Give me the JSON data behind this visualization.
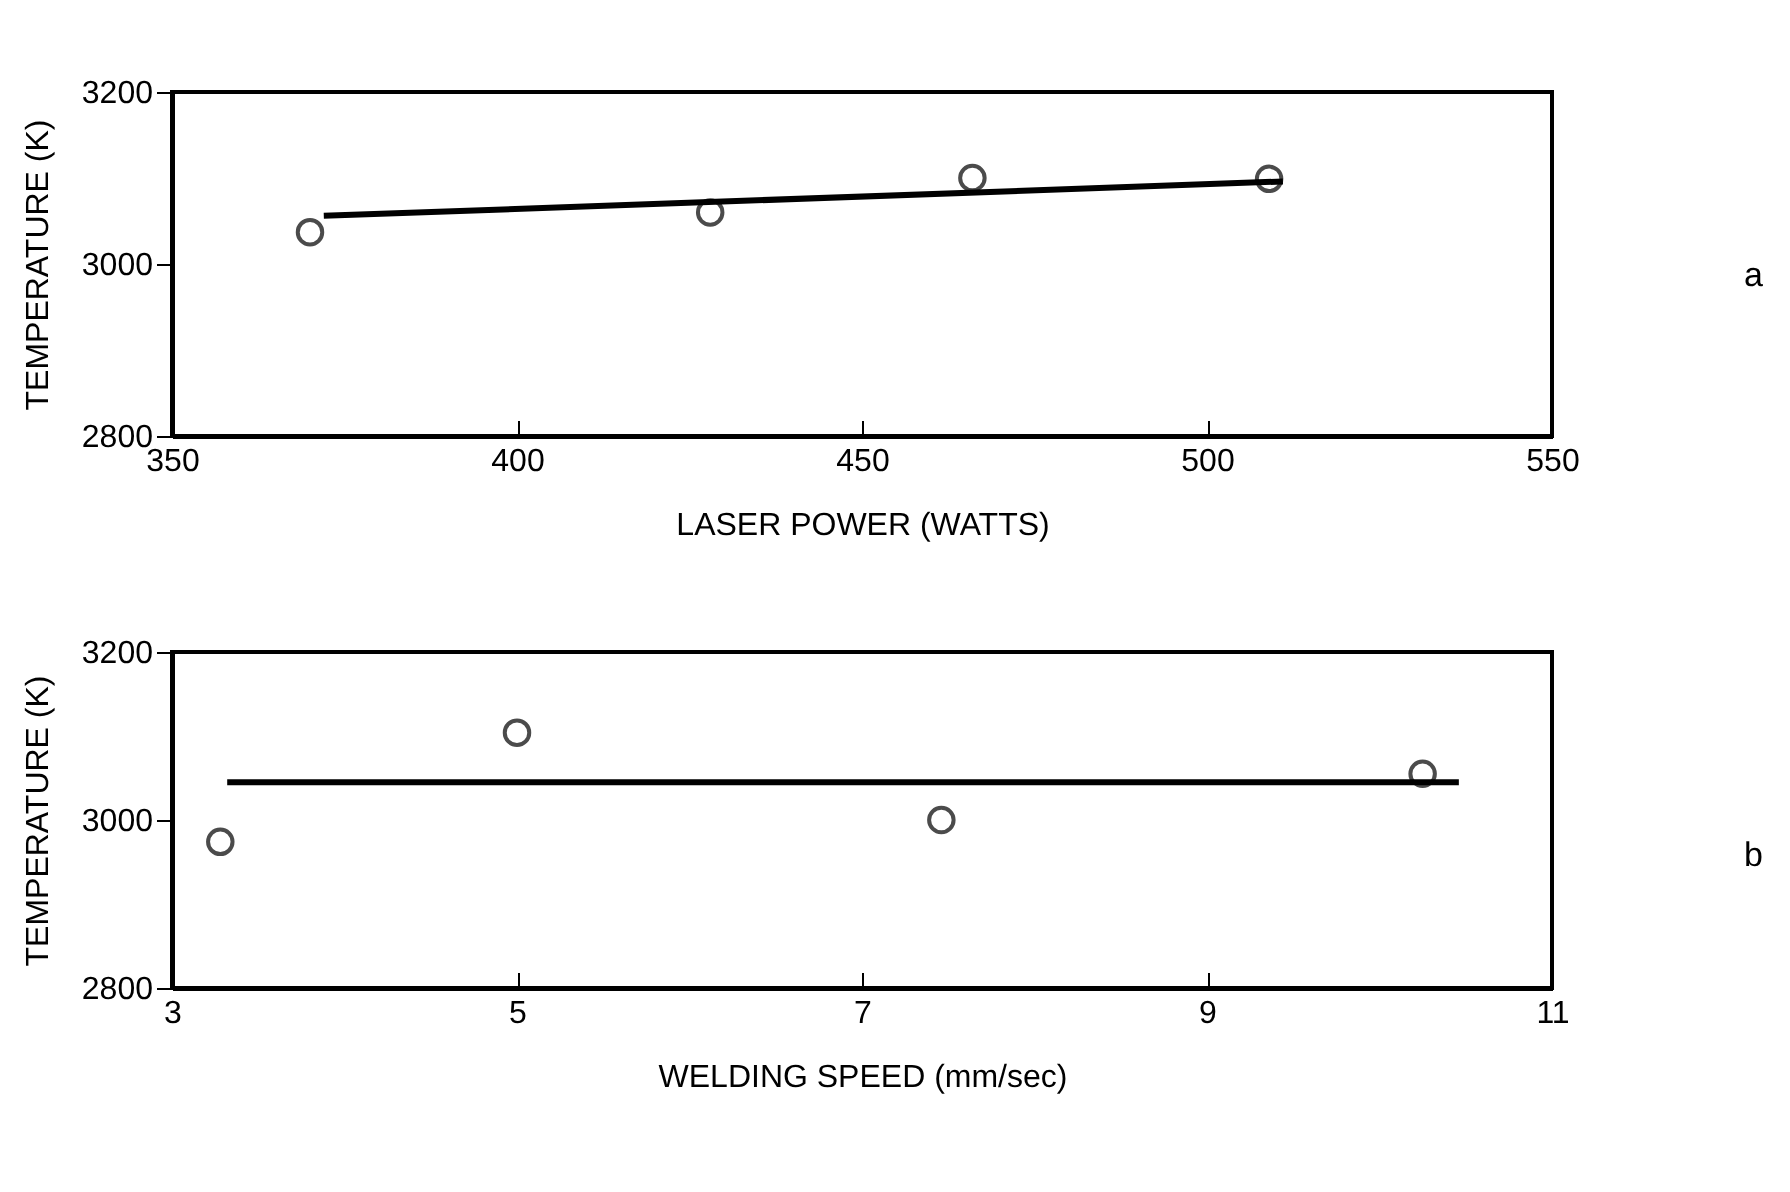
{
  "chart_data": [
    {
      "type": "scatter",
      "xlabel": "LASER POWER (WATTS)",
      "ylabel": "TEMPERATURE (K)",
      "xlim": [
        350,
        550
      ],
      "xticks": [
        350,
        400,
        450,
        500,
        550
      ],
      "ylim": [
        2800,
        3200
      ],
      "yticks": [
        2800,
        3000,
        3200
      ],
      "grid": false,
      "marker": "circle",
      "annotations": [
        "a"
      ],
      "series": [
        {
          "type": "scatter",
          "color": "#000000",
          "x": [
            370,
            428,
            466,
            509
          ],
          "values": [
            3037,
            3060,
            3100,
            3099
          ]
        },
        {
          "type": "line",
          "color": "#000000",
          "line_style": "solid",
          "marker": "none",
          "x": [
            372,
            511
          ],
          "values": [
            3056,
            3096
          ]
        }
      ]
    },
    {
      "type": "scatter",
      "xlabel": "WELDING SPEED (mm/sec)",
      "ylabel": "TEMPERATURE (K)",
      "xlim": [
        3,
        11
      ],
      "xticks": [
        3,
        5,
        7,
        9,
        11
      ],
      "ylim": [
        2800,
        3200
      ],
      "yticks": [
        2800,
        3000,
        3200
      ],
      "grid": false,
      "marker": "circle",
      "annotations": [
        "b"
      ],
      "series": [
        {
          "type": "scatter",
          "color": "#000000",
          "x": [
            3.28,
            5.0,
            7.46,
            10.25
          ],
          "values": [
            2974,
            3104,
            3000,
            3055
          ]
        },
        {
          "type": "line",
          "color": "#000000",
          "line_style": "solid",
          "marker": "none",
          "x": [
            3.32,
            10.46
          ],
          "values": [
            3045,
            3045
          ]
        }
      ]
    }
  ]
}
